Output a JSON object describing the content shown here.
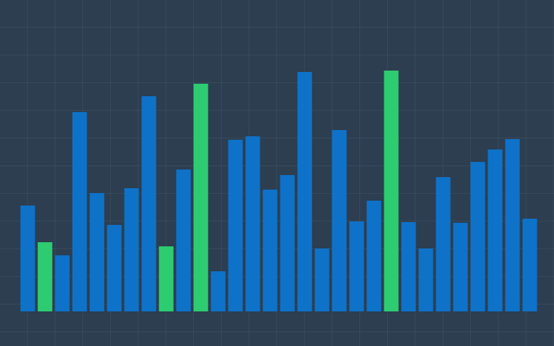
{
  "chart_data": {
    "type": "bar",
    "categories": [
      null,
      null,
      null,
      null,
      null,
      null,
      null,
      null,
      null,
      null,
      null,
      null,
      null,
      null,
      null,
      null,
      null,
      null,
      null,
      null,
      null,
      null,
      null,
      null,
      null,
      null,
      null,
      null,
      null,
      null
    ],
    "values": [
      153,
      100,
      81,
      288,
      171,
      125,
      178,
      311,
      94,
      205,
      329,
      58,
      248,
      253,
      176,
      197,
      346,
      91,
      262,
      130,
      160,
      348,
      129,
      91,
      194,
      128,
      216,
      234,
      249,
      134
    ],
    "colors": [
      "#0e72c9",
      "#2ecc71",
      "#0e72c9",
      "#0e72c9",
      "#0e72c9",
      "#0e72c9",
      "#0e72c9",
      "#0e72c9",
      "#2ecc71",
      "#0e72c9",
      "#2ecc71",
      "#0e72c9",
      "#0e72c9",
      "#0e72c9",
      "#0e72c9",
      "#0e72c9",
      "#0e72c9",
      "#0e72c9",
      "#0e72c9",
      "#0e72c9",
      "#0e72c9",
      "#2ecc71",
      "#0e72c9",
      "#0e72c9",
      "#0e72c9",
      "#0e72c9",
      "#0e72c9",
      "#0e72c9",
      "#0e72c9",
      "#0e72c9"
    ],
    "ylim": [
      0,
      450
    ]
  }
}
